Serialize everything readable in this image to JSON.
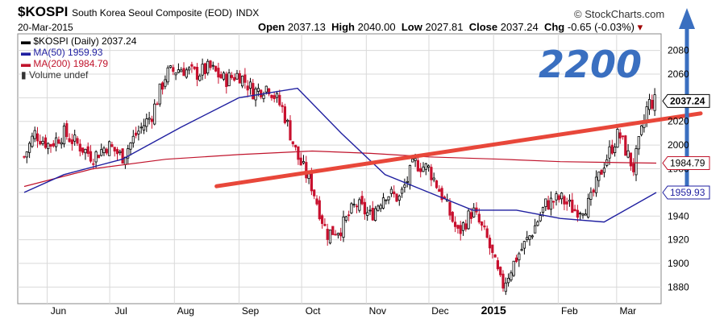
{
  "header": {
    "ticker": "$KOSPI",
    "name": "South Korea Seoul Composite (EOD)",
    "exchange": "INDX",
    "date": "20-Mar-2015",
    "open_label": "Open",
    "open": "2037.13",
    "high_label": "High",
    "high": "2040.00",
    "low_label": "Low",
    "low": "2027.81",
    "close_label": "Close",
    "close": "2037.24",
    "chg_label": "Chg",
    "chg": "-0.65 (-0.03%)",
    "brand": "© StockCharts.com"
  },
  "legend": {
    "main": "$KOSPI (Daily) 2037.24",
    "ma50": "MA(50) 1959.93",
    "ma200": "MA(200) 1984.79",
    "volume": "Volume undef"
  },
  "annotation": {
    "text": "2200"
  },
  "colors": {
    "up": "#000000",
    "down": "#c8102e",
    "ma50": "#1f1fa0",
    "ma200": "#c0142c",
    "trendline": "#e8473a",
    "arrow": "#3a6fc0",
    "grid": "#d9d9d9"
  },
  "chart_data": {
    "type": "candlestick",
    "x_tick_labels": [
      "Jun",
      "Jul",
      "Aug",
      "Sep",
      "Oct",
      "Nov",
      "Dec",
      "2015",
      "Feb",
      "Mar"
    ],
    "y_ticks": [
      1880,
      1900,
      1920,
      1940,
      1960,
      1980,
      2000,
      2020,
      2040,
      2060,
      2080
    ],
    "y_tick_labels": [
      "1880",
      "1900",
      "1920",
      "1940",
      "1960",
      "1980",
      "2000",
      "2020",
      "",
      "2060",
      "2080"
    ],
    "ylim": [
      1866,
      2094
    ],
    "grid": true,
    "last_close": 2037.24,
    "ma50_last": 1959.93,
    "ma200_last": 1984.79,
    "close_label": "2037.24",
    "ma50_label": "1959.93",
    "ma200_label": "1984.79",
    "close_path": [
      [
        "2014-05-21",
        1990
      ],
      [
        "2014-05-26",
        2010
      ],
      [
        "2014-06-02",
        2000
      ],
      [
        "2014-06-09",
        2010
      ],
      [
        "2014-06-16",
        2000
      ],
      [
        "2014-06-23",
        1990
      ],
      [
        "2014-06-30",
        2000
      ],
      [
        "2014-07-07",
        1990
      ],
      [
        "2014-07-14",
        2010
      ],
      [
        "2014-07-21",
        2025
      ],
      [
        "2014-07-28",
        2060
      ],
      [
        "2014-08-04",
        2065
      ],
      [
        "2014-08-11",
        2060
      ],
      [
        "2014-08-18",
        2065
      ],
      [
        "2014-08-25",
        2055
      ],
      [
        "2014-09-01",
        2060
      ],
      [
        "2014-09-08",
        2045
      ],
      [
        "2014-09-15",
        2050
      ],
      [
        "2014-09-22",
        2030
      ],
      [
        "2014-09-29",
        1990
      ],
      [
        "2014-10-06",
        1965
      ],
      [
        "2014-10-13",
        1925
      ],
      [
        "2014-10-20",
        1930
      ],
      [
        "2014-10-27",
        1950
      ],
      [
        "2014-11-03",
        1940
      ],
      [
        "2014-11-10",
        1960
      ],
      [
        "2014-11-17",
        1955
      ],
      [
        "2014-11-24",
        1985
      ],
      [
        "2014-12-01",
        1980
      ],
      [
        "2014-12-08",
        1955
      ],
      [
        "2014-12-15",
        1925
      ],
      [
        "2014-12-22",
        1945
      ],
      [
        "2014-12-29",
        1920
      ],
      [
        "2015-01-05",
        1880
      ],
      [
        "2015-01-12",
        1905
      ],
      [
        "2015-01-19",
        1925
      ],
      [
        "2015-01-26",
        1950
      ],
      [
        "2015-02-02",
        1955
      ],
      [
        "2015-02-09",
        1945
      ],
      [
        "2015-02-16",
        1950
      ],
      [
        "2015-02-23",
        1985
      ],
      [
        "2015-03-02",
        2010
      ],
      [
        "2015-03-09",
        1980
      ],
      [
        "2015-03-16",
        2035
      ],
      [
        "2015-03-20",
        2037.24
      ]
    ],
    "ma50_path": [
      [
        "2014-05-21",
        1960
      ],
      [
        "2014-06-09",
        1975
      ],
      [
        "2014-07-07",
        1988
      ],
      [
        "2014-08-04",
        2015
      ],
      [
        "2014-09-01",
        2040
      ],
      [
        "2014-09-29",
        2048
      ],
      [
        "2014-10-20",
        2010
      ],
      [
        "2014-11-10",
        1975
      ],
      [
        "2014-12-01",
        1960
      ],
      [
        "2014-12-22",
        1945
      ],
      [
        "2015-01-12",
        1945
      ],
      [
        "2015-02-02",
        1938
      ],
      [
        "2015-02-23",
        1935
      ],
      [
        "2015-03-20",
        1959.93
      ]
    ],
    "ma200_path": [
      [
        "2014-05-21",
        1965
      ],
      [
        "2014-06-23",
        1980
      ],
      [
        "2014-07-28",
        1988
      ],
      [
        "2014-09-01",
        1992
      ],
      [
        "2014-10-06",
        1995
      ],
      [
        "2014-11-03",
        1993
      ],
      [
        "2014-12-01",
        1990
      ],
      [
        "2015-01-05",
        1988
      ],
      [
        "2015-02-02",
        1986
      ],
      [
        "2015-03-20",
        1984.79
      ]
    ],
    "drawn_trendline": [
      [
        "2014-09-25",
        1970
      ],
      [
        "2015-03-20",
        2022
      ]
    ],
    "drawn_arrow": {
      "date": "2015-03-20",
      "from": 1955,
      "to": 2100
    }
  }
}
